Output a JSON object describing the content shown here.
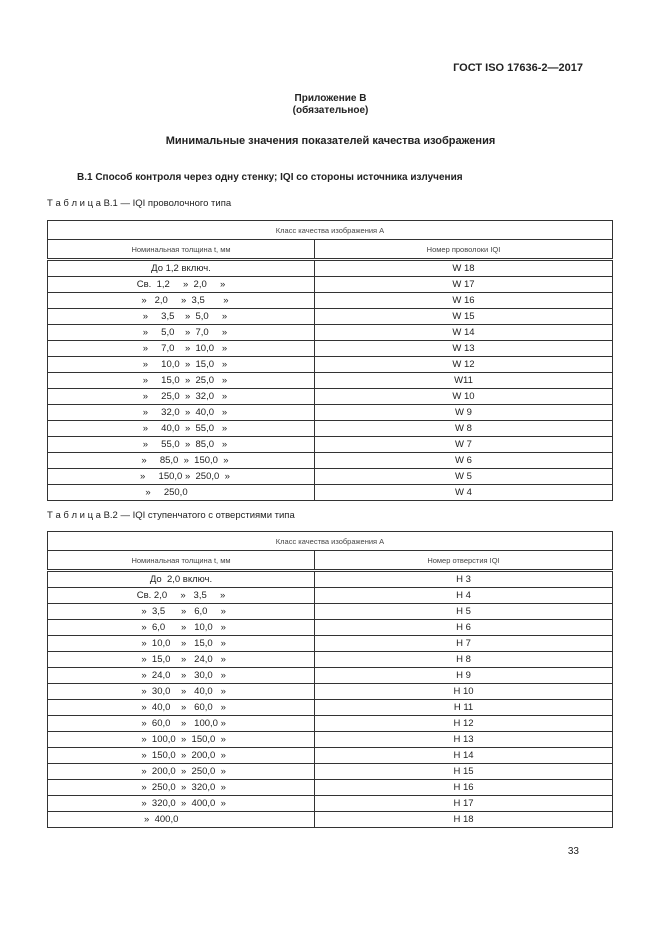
{
  "header": "ГОСТ ISO 17636-2—2017",
  "appendix": {
    "title": "Приложение В",
    "subtitle": "(обязательное)"
  },
  "main_title": "Минимальные значения показателей качества изображения",
  "section": "В.1 Способ контроля через одну стенку; IQI со стороны источника излучения",
  "table1": {
    "caption": "Т а б л и ц а  В.1 — IQI проволочного типа",
    "class": "Класс качества изображения А",
    "col1": "Номинальная толщина t, мм",
    "col2": "Номер проволоки IQI",
    "rows": [
      [
        "До 1,2 включ.",
        "W 18"
      ],
      [
        "Св.  1,2     »  2,0     »",
        "W 17"
      ],
      [
        "   »   2,0     »  3,5       »",
        "W 16"
      ],
      [
        "   »     3,5    »  5,0     »",
        "W 15"
      ],
      [
        "   »     5,0    »  7,0     »",
        "W 14"
      ],
      [
        "   »     7,0    »  10,0   »",
        "W 13"
      ],
      [
        "   »     10,0  »  15,0   »",
        "W 12"
      ],
      [
        "   »     15,0  »  25,0   »",
        "W11"
      ],
      [
        "   »     25,0  »  32,0   »",
        "W 10"
      ],
      [
        "   »     32,0  »  40,0   »",
        "W 9"
      ],
      [
        "   »     40,0  »  55,0   »",
        "W 8"
      ],
      [
        "   »     55,0  »  85,0   »",
        "W 7"
      ],
      [
        "   »     85,0  »  150,0  »",
        "W 6"
      ],
      [
        "   »     150,0 »  250,0  »",
        "W 5"
      ],
      [
        "   »     250,0              ",
        "W 4"
      ]
    ]
  },
  "table2": {
    "caption": "Т а б л и ц а  В.2 — IQI ступенчатого с отверстиями типа",
    "class": "Класс качества изображения А",
    "col1": "Номинальная толщина t, мм",
    "col2": "Номер отверстия IQI",
    "rows": [
      [
        "До  2,0 включ.",
        "H 3"
      ],
      [
        "Св. 2,0     »   3,5     »",
        "H 4"
      ],
      [
        "  »  3,5      »   6,0     »",
        "H 5"
      ],
      [
        "  »  6,0      »   10,0   »",
        "H 6"
      ],
      [
        "  »  10,0    »   15,0   »",
        "H 7"
      ],
      [
        "  »  15,0    »   24,0   »",
        "H 8"
      ],
      [
        "  »  24,0    »   30,0   »",
        "H 9"
      ],
      [
        "  »  30,0    »   40,0   »",
        "H 10"
      ],
      [
        "  »  40,0    »   60,0   »",
        "H 11"
      ],
      [
        "  »  60,0    »   100,0 »",
        "H 12"
      ],
      [
        "  »  100,0  »  150,0  »",
        "H 13"
      ],
      [
        "  »  150,0  »  200,0  »",
        "H 14"
      ],
      [
        "  »  200,0  »  250,0  »",
        "H 15"
      ],
      [
        "  »  250,0  »  320,0  »",
        "H 16"
      ],
      [
        "  »  320,0  »  400,0  »",
        "H 17"
      ],
      [
        "  »  400,0                 ",
        "H 18"
      ]
    ]
  },
  "page_number": "33"
}
